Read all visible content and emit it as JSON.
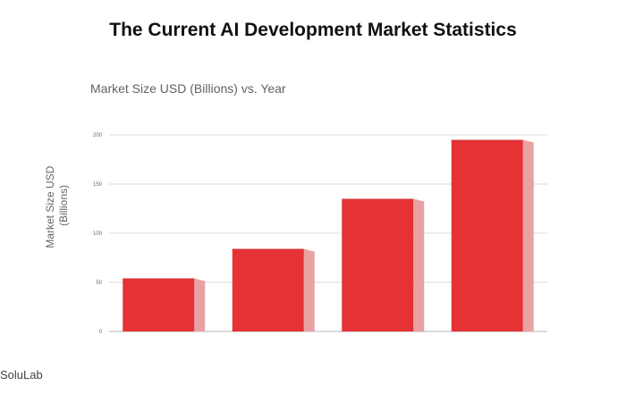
{
  "page": {
    "title": "The Current AI Development Market Statistics",
    "watermark": "SoluLab"
  },
  "chart_data": {
    "type": "bar",
    "title": "Market Size USD (Billions) vs. Year",
    "xlabel": "",
    "ylabel_lines": [
      "Market Size USD",
      "(Billions)"
    ],
    "categories": [
      "",
      "",
      "",
      ""
    ],
    "values": [
      54,
      84,
      135,
      195
    ],
    "ylim": [
      0,
      200
    ],
    "yticks": [
      0,
      50,
      100,
      150,
      200
    ],
    "grid": true,
    "legend": "none",
    "colors": {
      "bar_front": "#e53235",
      "bar_side": "#e8a2a3",
      "bar_top": "#d33a3c",
      "gridline": "#d9d9d9",
      "axis": "#b5b5b5"
    }
  }
}
